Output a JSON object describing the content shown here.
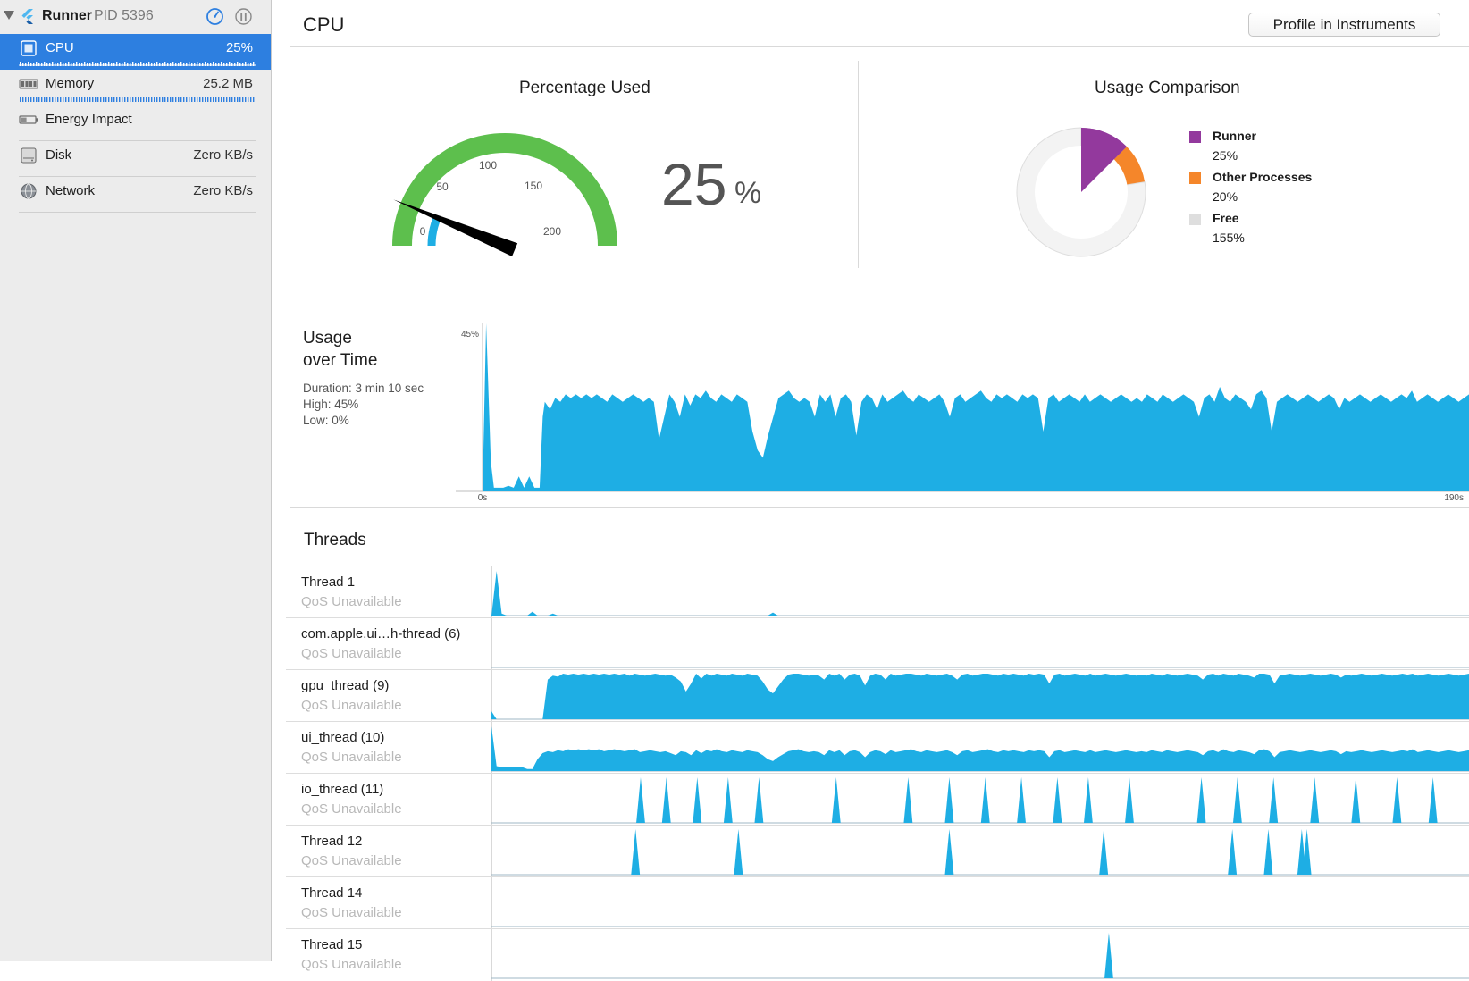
{
  "process": {
    "name": "Runner",
    "pid": "PID 5396"
  },
  "icons": {
    "disclosure": "disclosure-triangle-icon",
    "app": "flutter-icon",
    "gauge": "gauge-icon",
    "pause": "pause-icon"
  },
  "gauges": [
    {
      "label": "CPU",
      "value": "25%",
      "icon": "cpu-chip-icon",
      "selected": true
    },
    {
      "label": "Memory",
      "value": "25.2 MB",
      "icon": "memory-chip-icon"
    },
    {
      "label": "Energy Impact",
      "value": "",
      "icon": "battery-icon"
    },
    {
      "label": "Disk",
      "value": "Zero KB/s",
      "icon": "disk-icon"
    },
    {
      "label": "Network",
      "value": "Zero KB/s",
      "icon": "globe-icon"
    }
  ],
  "page": {
    "title": "CPU",
    "profile_button": "Profile in Instruments"
  },
  "percentage_used": {
    "title": "Percentage Used",
    "value": "25",
    "unit": "%",
    "gauge_ticks": [
      "0",
      "50",
      "100",
      "150",
      "200"
    ],
    "gauge_max": 200,
    "needle_value": 25
  },
  "usage_comparison": {
    "title": "Usage Comparison",
    "items": [
      {
        "name": "Runner",
        "value": "25%",
        "pct": 25,
        "color": "#93399d"
      },
      {
        "name": "Other Processes",
        "value": "20%",
        "pct": 20,
        "color": "#f5862a"
      },
      {
        "name": "Free",
        "value": "155%",
        "pct": 155,
        "color": "#dedede"
      }
    ]
  },
  "usage_over_time": {
    "title_line1": "Usage",
    "title_line2": "over Time",
    "duration": "Duration: 3 min 10 sec",
    "high": "High: 45%",
    "low": "Low: 0%",
    "y_max_label": "45%",
    "x_start_label": "0s",
    "x_end_label": "190s"
  },
  "chart_data": {
    "type": "area",
    "title": "",
    "xlabel": "",
    "ylabel": "",
    "xlim": [
      0,
      190
    ],
    "ylim": [
      0,
      45
    ],
    "x": [
      0,
      0.7,
      1.6,
      2.2,
      4,
      5,
      6,
      7,
      8,
      9,
      10,
      11,
      11.6,
      12,
      13,
      14,
      15,
      16,
      17,
      18,
      19,
      20,
      21,
      22,
      23,
      24,
      25,
      26,
      27,
      28,
      29,
      30,
      31,
      32,
      33,
      34,
      35,
      36,
      37,
      38,
      39,
      40,
      41,
      42,
      43,
      44,
      45,
      46,
      47,
      48,
      49,
      50,
      51,
      52,
      53,
      54,
      55,
      56,
      57,
      58,
      59,
      60,
      61,
      62,
      63,
      64,
      65,
      66,
      67,
      68,
      69,
      70,
      71,
      72,
      73,
      74,
      75,
      76,
      77,
      78,
      79,
      80,
      81,
      82,
      83,
      84,
      85,
      86,
      87,
      88,
      89,
      90,
      91,
      92,
      93,
      94,
      95,
      96,
      97,
      98,
      99,
      100,
      101,
      102,
      103,
      104,
      105,
      106,
      107,
      108,
      109,
      110,
      111,
      112,
      113,
      114,
      115,
      116,
      117,
      118,
      119,
      120,
      121,
      122,
      123,
      124,
      125,
      126,
      127,
      128,
      129,
      130,
      131,
      132,
      133,
      134,
      135,
      136,
      137,
      138,
      139,
      140,
      141,
      142,
      143,
      144,
      145,
      146,
      147,
      148,
      149,
      150,
      151,
      152,
      153,
      154,
      155,
      156,
      157,
      158,
      159,
      160,
      161,
      162,
      163,
      164,
      165,
      166,
      167,
      168,
      169,
      170,
      171,
      172,
      173,
      174,
      175,
      176,
      177,
      178,
      179,
      180,
      181,
      182,
      183,
      184,
      185,
      186,
      187,
      188,
      189,
      190
    ],
    "series": [
      {
        "values": [
          0,
          45,
          8,
          1,
          1,
          1.5,
          1,
          4,
          1,
          4,
          1,
          1,
          20,
          24,
          22,
          25,
          24,
          26,
          25,
          26,
          25,
          26,
          25,
          26,
          25,
          24,
          26,
          25,
          24,
          25,
          26,
          25,
          24,
          25,
          24,
          14,
          20,
          26,
          24,
          20,
          26,
          23,
          26,
          25,
          27,
          25,
          24,
          26,
          25,
          24,
          26,
          25,
          24,
          16,
          11,
          9,
          15,
          20,
          25,
          26,
          27,
          25,
          24,
          25,
          24,
          20,
          26,
          24,
          26,
          20,
          25,
          26,
          24,
          15,
          24,
          26,
          25,
          22,
          26,
          24,
          25,
          26,
          27,
          25,
          24,
          26,
          25,
          24,
          25,
          26,
          24,
          20,
          25,
          26,
          24,
          25,
          26,
          27,
          25,
          24,
          26,
          25,
          26,
          25,
          24,
          26,
          25,
          26,
          25,
          16,
          25,
          26,
          24,
          25,
          26,
          25,
          24,
          26,
          24,
          25,
          26,
          25,
          24,
          25,
          26,
          25,
          24,
          25,
          24,
          26,
          25,
          24,
          26,
          25,
          24,
          25,
          26,
          25,
          24,
          20,
          25,
          26,
          24,
          28,
          25,
          24,
          26,
          25,
          24,
          22,
          26,
          27,
          25,
          16,
          24,
          25,
          26,
          25,
          24,
          25,
          26,
          25,
          24,
          25,
          26,
          25,
          22,
          25,
          24,
          25,
          26,
          25,
          24,
          25,
          26,
          25,
          24,
          25,
          26,
          25,
          27,
          24,
          25,
          26,
          25,
          24,
          25,
          26,
          25,
          24,
          25,
          26
        ]
      }
    ]
  },
  "threads": {
    "title": "Threads",
    "rows": [
      {
        "name": "Thread 1",
        "qos": "QoS Unavailable",
        "values": [
          0,
          45,
          2,
          0,
          0,
          0,
          0,
          0,
          4,
          0,
          0,
          0,
          2,
          0,
          0,
          0,
          0,
          0,
          0,
          0,
          0,
          0,
          0,
          0,
          0,
          0,
          0,
          0,
          0,
          0,
          0,
          0,
          0,
          0,
          0,
          0,
          0,
          0,
          0,
          0,
          0,
          0,
          0,
          0,
          0,
          0,
          0,
          0,
          0,
          0,
          0,
          0,
          0,
          0,
          0,
          3,
          0,
          0,
          0,
          0,
          0,
          0,
          0,
          0,
          0,
          0,
          0,
          0,
          0,
          0,
          0,
          0,
          0,
          0,
          0,
          0,
          0,
          0,
          0,
          0,
          0,
          0,
          0,
          0,
          0,
          0,
          0,
          0,
          0,
          0,
          0,
          0,
          0,
          0,
          0,
          0,
          0,
          0,
          0,
          0,
          0,
          0,
          0,
          0,
          0,
          0,
          0,
          0,
          0,
          0,
          0,
          0,
          0,
          0,
          0,
          0,
          0,
          0,
          0,
          0,
          0,
          0,
          0,
          0,
          0,
          0,
          0,
          0,
          0,
          0,
          0,
          0,
          0,
          0,
          0,
          0,
          0,
          0,
          0,
          0,
          0,
          0,
          0,
          0,
          0,
          0,
          0,
          0,
          0,
          0,
          0,
          0,
          0,
          0,
          0,
          0,
          0,
          0,
          0,
          0,
          0,
          0,
          0,
          0,
          0,
          0,
          0,
          0,
          0,
          0,
          0,
          0,
          0,
          0,
          0,
          0,
          0,
          0,
          0,
          0,
          0,
          0,
          0,
          0,
          0,
          0,
          0,
          0,
          0,
          0,
          0,
          0
        ]
      },
      {
        "name": "com.apple.ui…h-thread (6)",
        "qos": "QoS Unavailable",
        "values": []
      },
      {
        "name": "gpu_thread (9)",
        "qos": "QoS Unavailable",
        "values": [
          8,
          0,
          0,
          0,
          0,
          0,
          0,
          0,
          0,
          0,
          0,
          40,
          44,
          43,
          46,
          45,
          46,
          45,
          46,
          45,
          46,
          45,
          46,
          45,
          46,
          45,
          46,
          44,
          46,
          45,
          44,
          45,
          46,
          45,
          44,
          45,
          42,
          38,
          28,
          36,
          46,
          41,
          46,
          44,
          46,
          45,
          44,
          46,
          45,
          44,
          46,
          45,
          44,
          38,
          30,
          26,
          33,
          40,
          45,
          46,
          46,
          45,
          44,
          45,
          44,
          40,
          46,
          44,
          46,
          40,
          45,
          46,
          44,
          34,
          44,
          46,
          45,
          40,
          46,
          44,
          45,
          46,
          46,
          45,
          44,
          46,
          45,
          44,
          45,
          46,
          44,
          40,
          45,
          46,
          44,
          45,
          46,
          46,
          45,
          44,
          46,
          45,
          46,
          45,
          44,
          46,
          45,
          46,
          45,
          36,
          45,
          46,
          44,
          45,
          46,
          45,
          44,
          46,
          44,
          45,
          46,
          45,
          44,
          45,
          46,
          45,
          44,
          45,
          44,
          46,
          45,
          44,
          46,
          45,
          44,
          45,
          46,
          45,
          44,
          40,
          45,
          46,
          44,
          46,
          45,
          44,
          46,
          45,
          44,
          42,
          46,
          46,
          45,
          36,
          44,
          45,
          46,
          45,
          44,
          45,
          46,
          45,
          44,
          45,
          46,
          45,
          42,
          45,
          44,
          45,
          46,
          45,
          44,
          45,
          46,
          45,
          44,
          45,
          46,
          45,
          46,
          44,
          45,
          46,
          45,
          44,
          45,
          46,
          45,
          44,
          45,
          46
        ]
      },
      {
        "name": "ui_thread (10)",
        "qos": "QoS Unavailable",
        "values": [
          45,
          5,
          4,
          4,
          4,
          4,
          4,
          2,
          2,
          12,
          18,
          20,
          19,
          21,
          20,
          22,
          21,
          22,
          21,
          22,
          21,
          22,
          20,
          21,
          22,
          21,
          20,
          21,
          22,
          19,
          20,
          21,
          20,
          19,
          20,
          18,
          16,
          20,
          19,
          16,
          21,
          18,
          21,
          20,
          22,
          20,
          19,
          21,
          20,
          19,
          21,
          20,
          19,
          16,
          12,
          10,
          14,
          17,
          20,
          21,
          22,
          20,
          19,
          20,
          19,
          16,
          21,
          19,
          21,
          16,
          20,
          21,
          19,
          14,
          19,
          21,
          20,
          17,
          21,
          19,
          20,
          21,
          22,
          20,
          19,
          21,
          20,
          19,
          20,
          21,
          19,
          16,
          20,
          21,
          19,
          20,
          21,
          22,
          20,
          19,
          21,
          20,
          21,
          20,
          19,
          21,
          20,
          21,
          20,
          14,
          20,
          21,
          19,
          20,
          21,
          20,
          19,
          21,
          19,
          20,
          21,
          20,
          19,
          20,
          21,
          20,
          19,
          20,
          19,
          21,
          20,
          19,
          21,
          20,
          19,
          20,
          21,
          20,
          19,
          16,
          20,
          21,
          19,
          22,
          20,
          19,
          21,
          20,
          19,
          17,
          21,
          22,
          20,
          14,
          19,
          20,
          21,
          20,
          19,
          20,
          21,
          20,
          19,
          20,
          21,
          20,
          17,
          20,
          19,
          20,
          21,
          20,
          19,
          20,
          21,
          20,
          19,
          20,
          21,
          20,
          22,
          19,
          20,
          21,
          20,
          19,
          20,
          21,
          20,
          19,
          20,
          21
        ]
      },
      {
        "name": "io_thread (11)",
        "qos": "QoS Unavailable",
        "spikes": [
          29,
          34,
          40,
          46,
          52,
          67,
          81,
          89,
          96,
          103,
          110,
          116,
          124,
          138,
          145,
          152,
          160,
          168,
          176,
          183
        ]
      },
      {
        "name": "Thread 12",
        "qos": "QoS Unavailable",
        "spikes": [
          28,
          48,
          89,
          119,
          144,
          151,
          157.5,
          158.5
        ]
      },
      {
        "name": "Thread 14",
        "qos": "QoS Unavailable",
        "spikes": []
      },
      {
        "name": "Thread 15",
        "qos": "QoS Unavailable",
        "spikes": [
          120
        ]
      }
    ]
  },
  "colors": {
    "accent": "#2d7fe0",
    "series": "#1eaee4",
    "gauge_green": "#5dbf4d",
    "needle": "#000000"
  }
}
